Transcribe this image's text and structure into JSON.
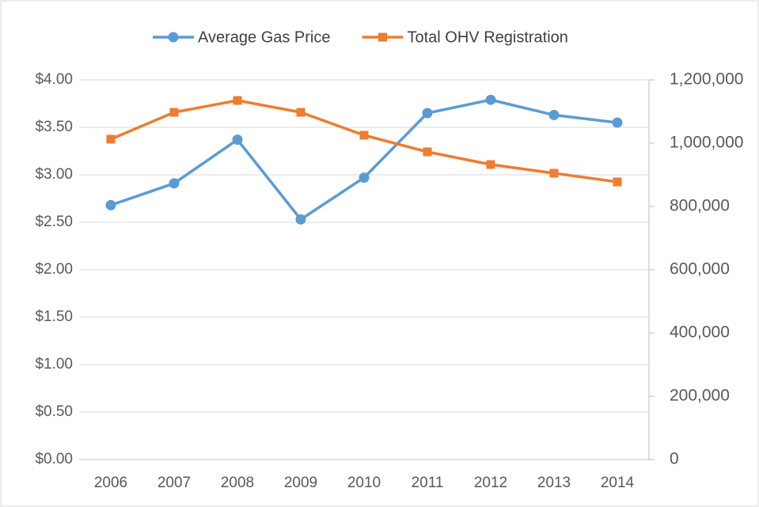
{
  "chart_data": {
    "type": "line",
    "categories": [
      "2006",
      "2007",
      "2008",
      "2009",
      "2010",
      "2011",
      "2012",
      "2013",
      "2014"
    ],
    "series": [
      {
        "name": "Average Gas Price",
        "color": "#5b9bd5",
        "marker": "circle",
        "values": [
          2.68,
          2.91,
          3.37,
          2.53,
          2.97,
          3.65,
          3.79,
          3.63,
          3.55
        ]
      },
      {
        "name": "Total OHV Registration",
        "color": "#ed7d31",
        "marker": "square",
        "axis": "y2",
        "values": [
          1012500,
          1097500,
          1135000,
          1097500,
          1025000,
          972500,
          932500,
          905000,
          877500
        ]
      }
    ],
    "ylim": [
      0,
      4
    ],
    "yticks": [
      {
        "value": 0,
        "label": "$0.00"
      },
      {
        "value": 0.5,
        "label": "$0.50"
      },
      {
        "value": 1,
        "label": "$1.00"
      },
      {
        "value": 1.5,
        "label": "$1.50"
      },
      {
        "value": 2,
        "label": "$2.00"
      },
      {
        "value": 2.5,
        "label": "$2.50"
      },
      {
        "value": 3,
        "label": "$3.00"
      },
      {
        "value": 3.5,
        "label": "$3.50"
      },
      {
        "value": 4,
        "label": "$4.00"
      }
    ],
    "y2lim": [
      0,
      1200000
    ],
    "y2ticks": [
      0,
      {
        "value": 200000,
        "label": "200,000"
      },
      {
        "value": 400000,
        "label": "400,000"
      },
      {
        "value": 600000,
        "label": "600,000"
      },
      {
        "value": 800000,
        "label": "800,000"
      },
      {
        "value": 1000000,
        "label": "1,000,000"
      },
      {
        "value": 1200000,
        "label": "1,200,000"
      }
    ],
    "grid": true,
    "legend": "top"
  }
}
